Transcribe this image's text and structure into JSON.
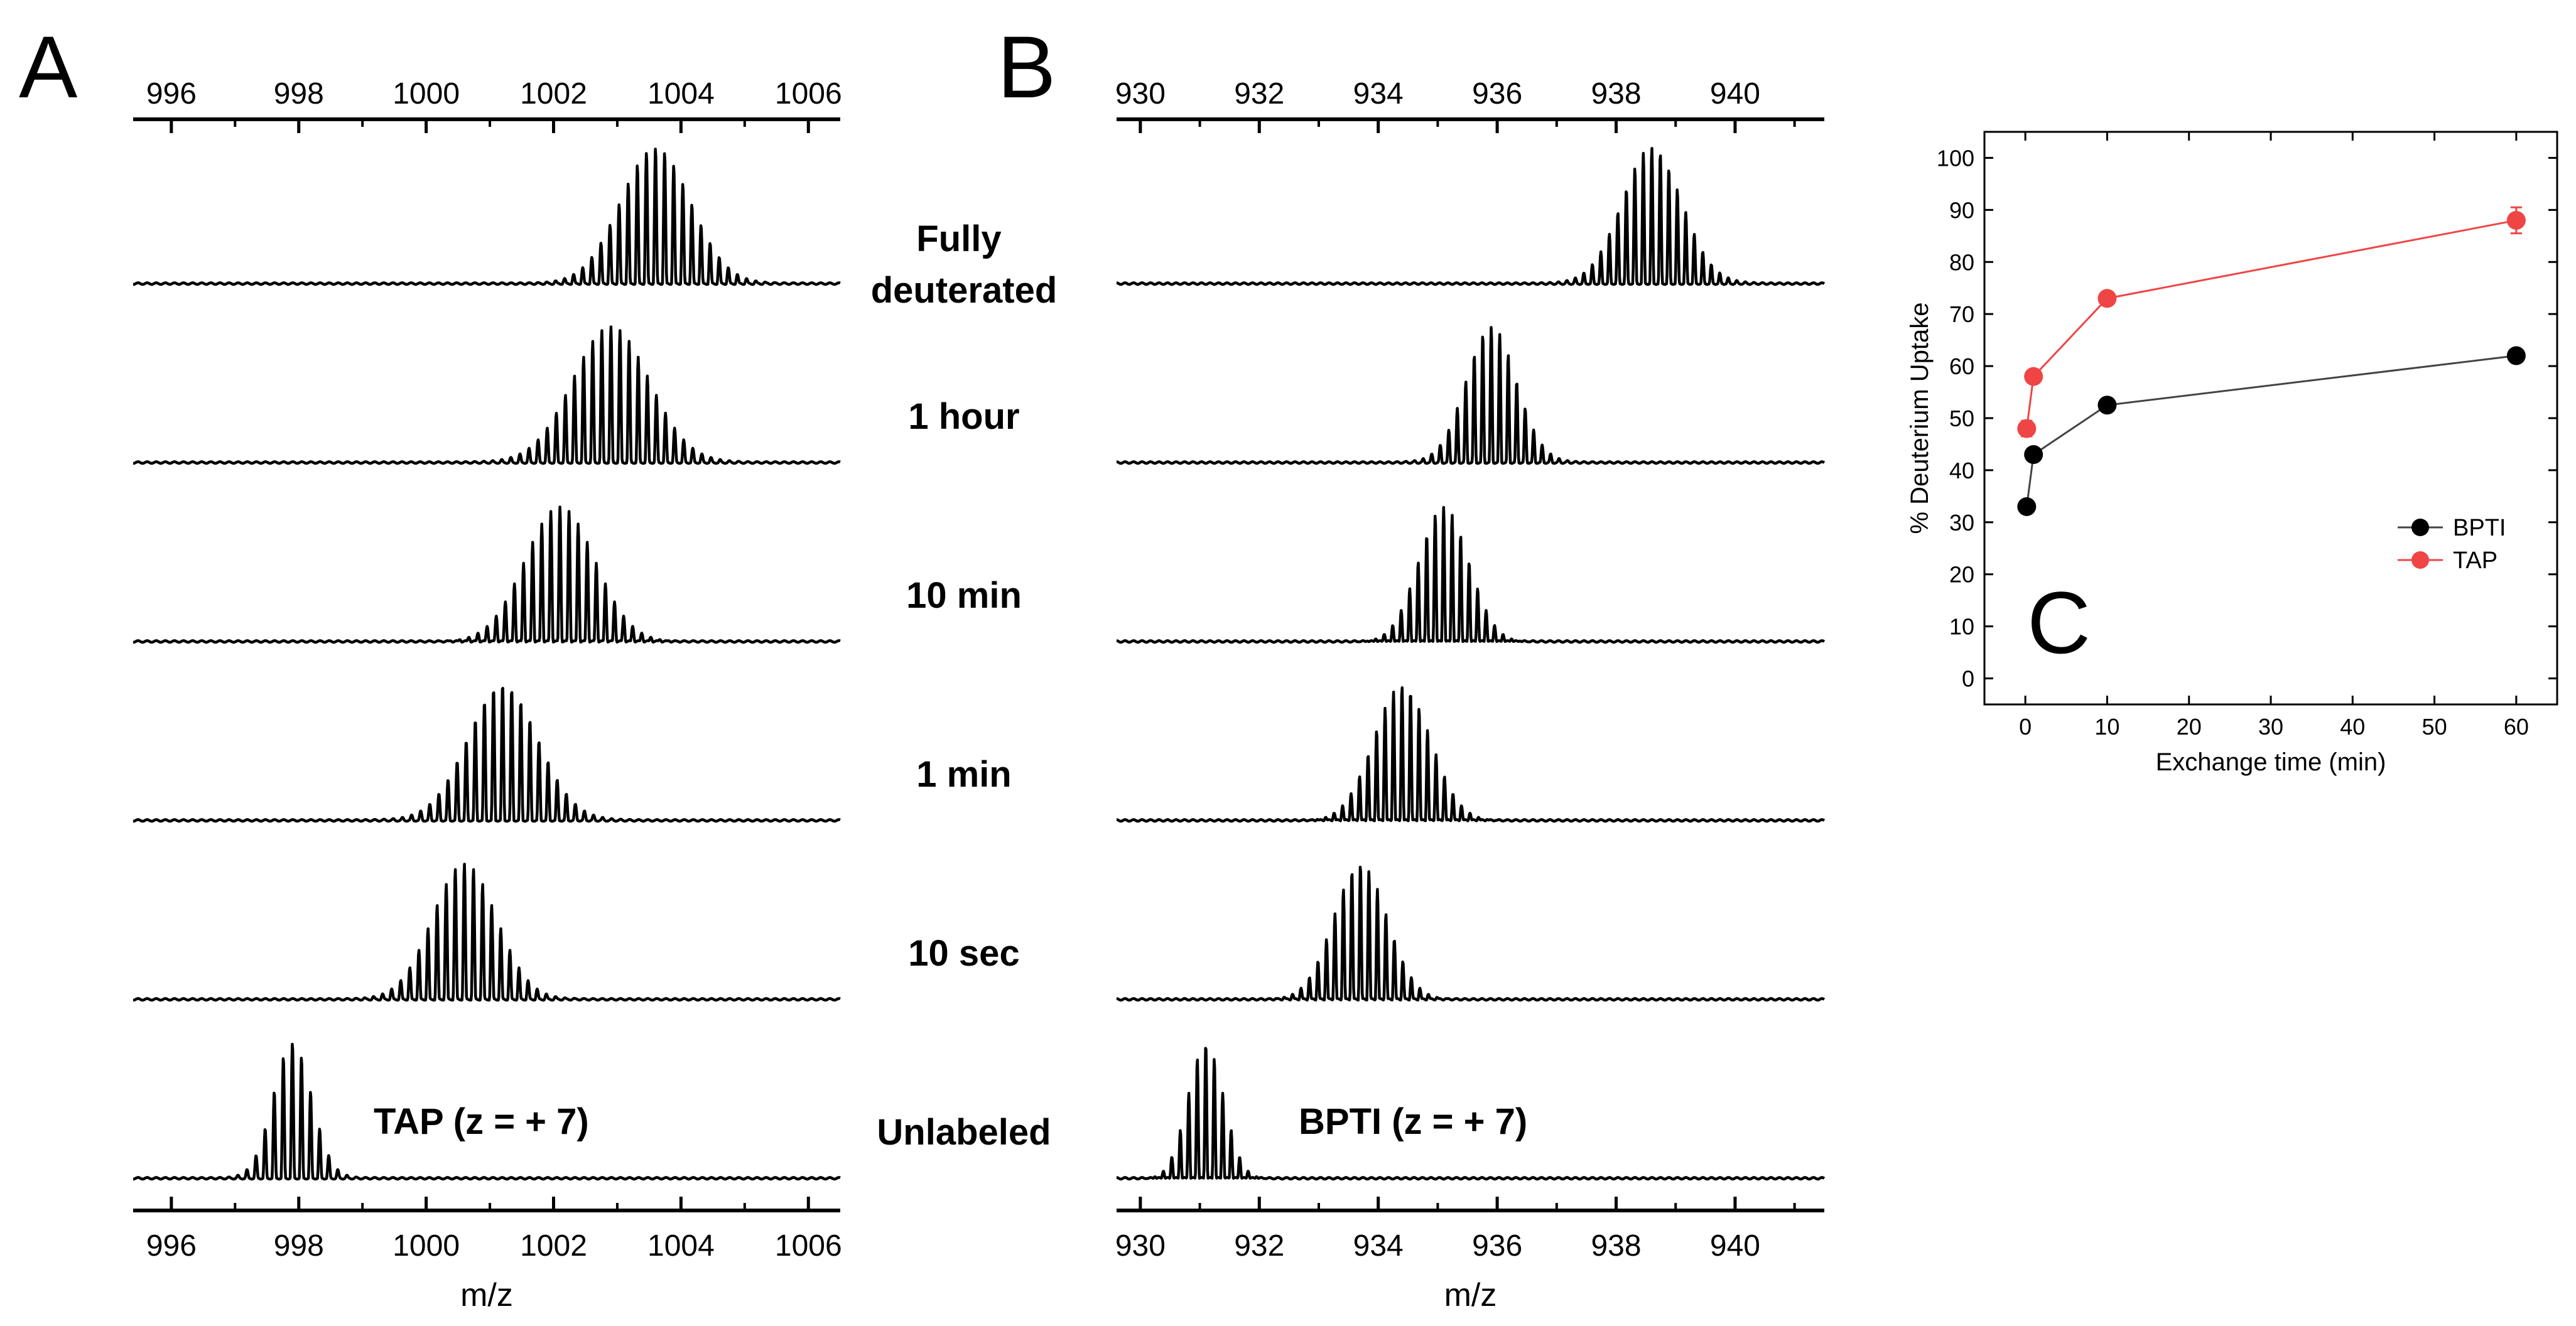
{
  "chart_data": [
    {
      "panel": "A",
      "type": "line",
      "subtype": "stacked mass spectra",
      "xlabel": "m/z",
      "xlim": [
        995.4,
        1006.5
      ],
      "xticks": [
        996,
        998,
        1000,
        1002,
        1004,
        1006
      ],
      "ion_label": "TAP (z = + 7)",
      "isotope_spacing": 0.1429,
      "series": [
        {
          "name": "Fully deuterated",
          "centroid": 1003.6,
          "sigma": 0.55
        },
        {
          "name": "1 hour",
          "centroid": 1002.9,
          "sigma": 0.6
        },
        {
          "name": "10 min",
          "centroid": 1002.1,
          "sigma": 0.55
        },
        {
          "name": "1 min",
          "centroid": 1001.2,
          "sigma": 0.55
        },
        {
          "name": "10 sec",
          "centroid": 1000.6,
          "sigma": 0.5
        },
        {
          "name": "Unlabeled",
          "centroid": 997.9,
          "sigma": 0.3
        }
      ]
    },
    {
      "panel": "B",
      "type": "line",
      "subtype": "stacked mass spectra",
      "xlabel": "m/z",
      "xlim": [
        929.6,
        941.5
      ],
      "xticks": [
        930,
        932,
        934,
        936,
        938,
        940
      ],
      "ion_label": "BPTI (z = + 7)",
      "isotope_spacing": 0.1429,
      "series": [
        {
          "name": "Fully deuterated",
          "centroid": 938.6,
          "sigma": 0.5
        },
        {
          "name": "1 hour",
          "centroid": 935.9,
          "sigma": 0.42
        },
        {
          "name": "10 min",
          "centroid": 935.1,
          "sigma": 0.42
        },
        {
          "name": "1 min",
          "centroid": 934.4,
          "sigma": 0.48
        },
        {
          "name": "10 sec",
          "centroid": 933.7,
          "sigma": 0.45
        },
        {
          "name": "Unlabeled",
          "centroid": 931.1,
          "sigma": 0.3
        }
      ]
    },
    {
      "panel": "C",
      "type": "line",
      "xlabel": "Exchange time (min)",
      "ylabel": "% Deuterium Uptake",
      "xlim": [
        -5,
        65
      ],
      "ylim": [
        -5,
        105
      ],
      "xticks": [
        0,
        10,
        20,
        30,
        40,
        50,
        60
      ],
      "yticks": [
        0,
        10,
        20,
        30,
        40,
        50,
        60,
        70,
        80,
        90,
        100
      ],
      "legend_position": "lower-right",
      "series": [
        {
          "name": "BPTI",
          "color": "#000000",
          "points": [
            [
              0.167,
              33
            ],
            [
              1,
              43
            ],
            [
              10,
              52.5
            ],
            [
              60,
              62
            ]
          ]
        },
        {
          "name": "TAP",
          "color": "#ef4545",
          "points": [
            [
              0.167,
              48
            ],
            [
              1,
              58
            ],
            [
              10,
              73
            ],
            [
              60,
              88
            ]
          ],
          "errors": [
            1.5,
            1,
            0.8,
            2.5
          ]
        }
      ]
    }
  ],
  "labels": {
    "panel_a": "A",
    "panel_b": "B",
    "panel_c": "C",
    "conditions": [
      "Fully deuterated",
      "1 hour",
      "10 min",
      "1 min",
      "10 sec",
      "Unlabeled"
    ]
  }
}
